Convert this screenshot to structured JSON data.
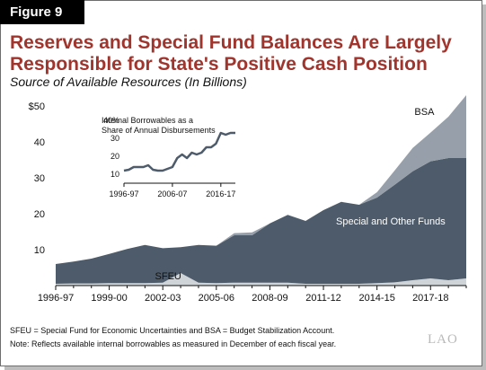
{
  "figure_label": "Figure 9",
  "title": "Reserves and Special Fund Balances Are Largely Responsible for State's Positive Cash Position",
  "subtitle": "Source of Available Resources (In Billions)",
  "notes": [
    "SFEU = Special Fund for Economic Uncertainties and BSA = Budget Stabilization Account.",
    "Note: Reflects available internal borrowables as measured in December of each fiscal year."
  ],
  "logo_text": "LAO",
  "colors": {
    "title": "#a0352d",
    "sfeu": "#cfd4d9",
    "special_funds": "#4d5b6a",
    "bsa": "#97a0aa",
    "inset_line": "#4d5b6a"
  },
  "chart_data": [
    {
      "type": "area",
      "stacked": true,
      "x": [
        "1996-97",
        "1997-98",
        "1998-99",
        "1999-00",
        "2000-01",
        "2001-02",
        "2002-03",
        "2003-04",
        "2004-05",
        "2005-06",
        "2006-07",
        "2007-08",
        "2008-09",
        "2009-10",
        "2010-11",
        "2011-12",
        "2012-13",
        "2013-14",
        "2014-15",
        "2015-16",
        "2016-17",
        "2017-18",
        "2018-19",
        "2019-20"
      ],
      "x_tick_labels": [
        "1996-97",
        "1999-00",
        "2002-03",
        "2005-06",
        "2008-09",
        "2011-12",
        "2014-15",
        "2017-18"
      ],
      "y_tick_labels": [
        "$50",
        "40",
        "30",
        "20",
        "10"
      ],
      "ylim": [
        0,
        52
      ],
      "series": [
        {
          "name": "SFEU",
          "values": [
            0.5,
            0.6,
            0.6,
            0.7,
            0.7,
            0.7,
            0.8,
            3.5,
            0.8,
            0.7,
            0.8,
            0.8,
            0.8,
            0.8,
            0.5,
            0.5,
            0.5,
            0.5,
            0.7,
            0.9,
            1.5,
            2.0,
            1.5,
            2.0
          ]
        },
        {
          "name": "Special and Other Funds",
          "values": [
            5.5,
            6.1,
            6.9,
            8.1,
            9.5,
            10.6,
            9.6,
            7.2,
            10.5,
            10.4,
            13.2,
            13.2,
            16.5,
            18.9,
            17.5,
            20.5,
            22.8,
            22.0,
            23.8,
            27.2,
            30.3,
            32.6,
            34.0,
            33.5
          ]
        },
        {
          "name": "BSA",
          "values": [
            0,
            0,
            0,
            0,
            0,
            0,
            0,
            0,
            0,
            0,
            0.6,
            0.8,
            0,
            0,
            0,
            0,
            0,
            0,
            1.5,
            4.0,
            6.5,
            8.0,
            11.5,
            17.5
          ]
        }
      ]
    },
    {
      "type": "line",
      "title": "Internal Borrowables as a Share of Annual Disbursements",
      "x": [
        "1996-97",
        "1997-98",
        "1998-99",
        "1999-00",
        "2000-01",
        "2001-02",
        "2002-03",
        "2003-04",
        "2004-05",
        "2005-06",
        "2006-07",
        "2007-08",
        "2008-09",
        "2009-10",
        "2010-11",
        "2011-12",
        "2012-13",
        "2013-14",
        "2014-15",
        "2015-16",
        "2016-17",
        "2017-18",
        "2018-19",
        "2019-20"
      ],
      "x_tick_labels": [
        "1996-97",
        "2006-07",
        "2016-17"
      ],
      "y_tick_labels": [
        "40%",
        "30",
        "20",
        "10"
      ],
      "ylim": [
        5,
        40
      ],
      "series": [
        {
          "values": [
            12,
            12.5,
            14,
            14,
            14,
            15,
            12.5,
            12,
            12,
            13,
            14,
            19,
            21,
            19,
            22,
            21,
            22,
            25,
            25,
            27,
            33,
            32,
            33,
            33
          ]
        }
      ]
    }
  ]
}
